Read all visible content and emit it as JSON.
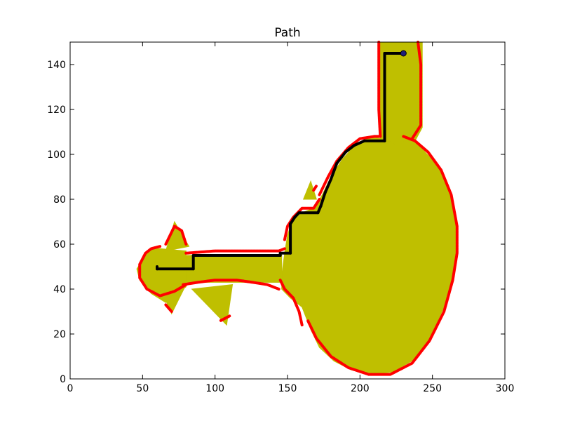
{
  "chart_data": {
    "type": "line",
    "title": "Path",
    "xlabel": "",
    "ylabel": "",
    "xlim": [
      0,
      300
    ],
    "ylim": [
      0,
      150
    ],
    "xticks": [
      0,
      50,
      100,
      150,
      200,
      250,
      300
    ],
    "yticks": [
      0,
      20,
      40,
      60,
      80,
      100,
      120,
      140
    ],
    "grid": false,
    "legend": "none",
    "colors": {
      "region_fill": "#bfbf00",
      "boundary": "#ff0000",
      "path": "#000000",
      "end_marker": "#1f1f7a"
    },
    "region": {
      "main_body": [
        [
          146,
          40
        ],
        [
          152,
          36
        ],
        [
          160,
          32
        ],
        [
          166,
          22
        ],
        [
          172,
          14
        ],
        [
          182,
          8
        ],
        [
          194,
          4
        ],
        [
          206,
          2
        ],
        [
          222,
          3
        ],
        [
          236,
          8
        ],
        [
          248,
          18
        ],
        [
          258,
          32
        ],
        [
          264,
          46
        ],
        [
          267,
          60
        ],
        [
          266,
          72
        ],
        [
          262,
          84
        ],
        [
          255,
          94
        ],
        [
          245,
          101
        ],
        [
          238,
          106
        ],
        [
          232,
          108
        ],
        [
          229,
          108
        ],
        [
          225,
          104
        ],
        [
          220,
          106
        ],
        [
          208,
          108
        ],
        [
          198,
          105
        ],
        [
          188,
          98
        ],
        [
          180,
          90
        ],
        [
          174,
          82
        ],
        [
          168,
          76
        ],
        [
          160,
          74
        ],
        [
          153,
          70
        ],
        [
          150,
          64
        ],
        [
          148,
          56
        ],
        [
          146,
          46
        ]
      ],
      "neck": [
        [
          214,
          104
        ],
        [
          214,
          150
        ],
        [
          243,
          150
        ],
        [
          243,
          112
        ],
        [
          238,
          106
        ],
        [
          230,
          106
        ],
        [
          225,
          104
        ],
        [
          220,
          106
        ]
      ],
      "corridor": [
        [
          146,
          55
        ],
        [
          110,
          55
        ],
        [
          80,
          55
        ],
        [
          80,
          43
        ],
        [
          110,
          43
        ],
        [
          146,
          43
        ]
      ],
      "left_end": [
        [
          80,
          57
        ],
        [
          62,
          58
        ],
        [
          55,
          58
        ],
        [
          46,
          49
        ],
        [
          48,
          44
        ],
        [
          56,
          38
        ],
        [
          66,
          34
        ],
        [
          80,
          41
        ]
      ],
      "fin_upper_left": [
        [
          66,
          57
        ],
        [
          72,
          70
        ],
        [
          82,
          59
        ]
      ],
      "fin_lower_left": [
        [
          66,
          35
        ],
        [
          70,
          29
        ],
        [
          80,
          42
        ]
      ],
      "fin_lower_right": [
        [
          84,
          40
        ],
        [
          108,
          24
        ],
        [
          112,
          42
        ]
      ],
      "fin_upper_right": [
        [
          161,
          80
        ],
        [
          166,
          88
        ],
        [
          170,
          80
        ]
      ]
    },
    "boundary_segments": [
      [
        [
          230,
          108
        ],
        [
          238,
          106
        ],
        [
          247,
          101
        ],
        [
          256,
          93
        ],
        [
          263,
          82
        ],
        [
          267,
          68
        ],
        [
          267,
          56
        ],
        [
          264,
          44
        ],
        [
          258,
          30
        ],
        [
          248,
          17
        ],
        [
          236,
          7
        ],
        [
          221,
          2
        ],
        [
          206,
          2
        ],
        [
          192,
          5
        ],
        [
          180,
          10
        ],
        [
          170,
          18
        ],
        [
          164,
          26
        ]
      ],
      [
        [
          160,
          24
        ],
        [
          158,
          30
        ],
        [
          154,
          36
        ],
        [
          148,
          40
        ],
        [
          145,
          44
        ]
      ],
      [
        [
          144,
          40
        ],
        [
          136,
          42
        ],
        [
          126,
          43
        ],
        [
          115,
          44
        ],
        [
          100,
          44
        ],
        [
          88,
          43
        ],
        [
          78,
          42
        ]
      ],
      [
        [
          80,
          42
        ],
        [
          72,
          39
        ],
        [
          62,
          37
        ],
        [
          53,
          40
        ],
        [
          48,
          45
        ],
        [
          48,
          51
        ],
        [
          52,
          56
        ],
        [
          56,
          58
        ],
        [
          62,
          59
        ]
      ],
      [
        [
          66,
          60
        ],
        [
          72,
          68
        ],
        [
          77,
          66
        ],
        [
          80,
          60
        ]
      ],
      [
        [
          80,
          56
        ],
        [
          100,
          57
        ],
        [
          120,
          57
        ],
        [
          144,
          57
        ],
        [
          148,
          58
        ]
      ],
      [
        [
          148,
          62
        ],
        [
          150,
          68
        ],
        [
          154,
          72
        ],
        [
          160,
          76
        ],
        [
          168,
          76
        ],
        [
          172,
          80
        ]
      ],
      [
        [
          172,
          82
        ],
        [
          178,
          90
        ],
        [
          184,
          97
        ],
        [
          192,
          103
        ],
        [
          200,
          107
        ],
        [
          210,
          108
        ],
        [
          214,
          108
        ]
      ],
      [
        [
          214,
          108
        ],
        [
          213,
          120
        ],
        [
          213,
          135
        ],
        [
          213,
          150
        ]
      ],
      [
        [
          240,
          150
        ],
        [
          242,
          140
        ],
        [
          242,
          125
        ],
        [
          242,
          113
        ],
        [
          236,
          107
        ]
      ],
      [
        [
          66,
          33
        ],
        [
          70,
          30
        ]
      ],
      [
        [
          104,
          26
        ],
        [
          110,
          28
        ]
      ],
      [
        [
          168,
          84
        ],
        [
          170,
          86
        ]
      ]
    ],
    "path": [
      [
        60,
        50
      ],
      [
        60,
        49
      ],
      [
        85,
        49
      ],
      [
        85,
        55
      ],
      [
        145,
        55
      ],
      [
        145,
        56
      ],
      [
        152,
        56
      ],
      [
        152,
        69
      ],
      [
        155,
        72
      ],
      [
        158,
        74
      ],
      [
        171,
        74
      ],
      [
        173,
        77
      ],
      [
        176,
        83
      ],
      [
        180,
        89
      ],
      [
        184,
        96
      ],
      [
        190,
        101
      ],
      [
        196,
        104
      ],
      [
        203,
        106
      ],
      [
        217,
        106
      ],
      [
        217,
        145
      ],
      [
        230,
        145
      ]
    ],
    "end_point": [
      230,
      145
    ]
  }
}
